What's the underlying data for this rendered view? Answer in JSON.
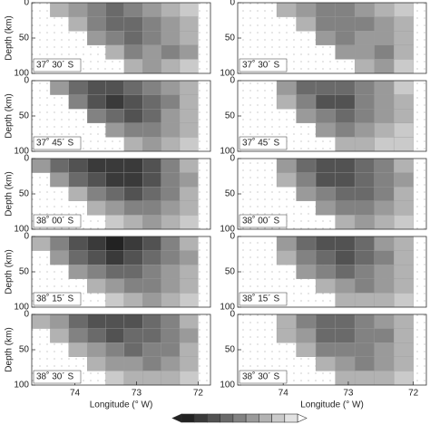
{
  "chart_data": [
    {
      "type": "heatmap",
      "label": "37˚ 30´ S",
      "ylabel": "Depth (km)",
      "xlim": [
        74.7,
        71.8
      ],
      "ylim": [
        100,
        0
      ],
      "yticks": [
        0,
        50,
        100
      ],
      "xbins": [
        74.7,
        74.4,
        74.1,
        73.8,
        73.5,
        73.2,
        72.9,
        72.6,
        72.3,
        72.0
      ],
      "ybins": [
        0,
        20,
        40,
        60,
        80,
        100
      ],
      "values": [
        [
          null,
          3,
          4,
          5,
          6,
          5,
          4,
          3,
          2
        ],
        [
          null,
          null,
          3,
          5,
          6,
          6,
          5,
          4,
          3
        ],
        [
          null,
          null,
          null,
          4,
          5,
          6,
          5,
          4,
          3
        ],
        [
          null,
          null,
          null,
          null,
          3,
          5,
          4,
          5,
          4
        ],
        [
          null,
          null,
          null,
          null,
          null,
          3,
          4,
          3,
          2
        ]
      ]
    },
    {
      "type": "heatmap",
      "label": "37˚ 30´ S",
      "xlim": [
        74.7,
        71.8
      ],
      "ylim": [
        100,
        0
      ],
      "yticks": [
        0,
        50,
        100
      ],
      "xbins": [
        74.7,
        74.4,
        74.1,
        73.8,
        73.5,
        73.2,
        72.9,
        72.6,
        72.3,
        72.0
      ],
      "ybins": [
        0,
        20,
        40,
        60,
        80,
        100
      ],
      "values": [
        [
          null,
          null,
          3,
          4,
          5,
          5,
          4,
          3,
          2
        ],
        [
          null,
          null,
          null,
          3,
          5,
          5,
          5,
          4,
          3
        ],
        [
          null,
          null,
          null,
          null,
          4,
          5,
          4,
          4,
          3
        ],
        [
          null,
          null,
          null,
          null,
          null,
          4,
          4,
          5,
          3
        ],
        [
          null,
          null,
          null,
          null,
          null,
          null,
          3,
          4,
          2
        ]
      ]
    },
    {
      "type": "heatmap",
      "label": "37˚ 45´ S",
      "ylabel": "Depth (km)",
      "xlim": [
        74.7,
        71.8
      ],
      "ylim": [
        100,
        0
      ],
      "yticks": [
        0,
        50,
        100
      ],
      "xbins": [
        74.7,
        74.4,
        74.1,
        73.8,
        73.5,
        73.2,
        72.9,
        72.6,
        72.3,
        72.0
      ],
      "ybins": [
        0,
        20,
        40,
        60,
        80,
        100
      ],
      "values": [
        [
          null,
          4,
          6,
          7,
          7,
          6,
          5,
          4,
          3
        ],
        [
          null,
          null,
          5,
          7,
          8,
          7,
          6,
          5,
          3
        ],
        [
          null,
          null,
          null,
          5,
          6,
          7,
          6,
          4,
          3
        ],
        [
          null,
          null,
          null,
          null,
          4,
          5,
          5,
          4,
          3
        ],
        [
          null,
          null,
          null,
          null,
          null,
          3,
          4,
          3,
          2
        ]
      ]
    },
    {
      "type": "heatmap",
      "label": "37˚ 45´ S",
      "xlim": [
        74.7,
        71.8
      ],
      "ylim": [
        100,
        0
      ],
      "yticks": [
        0,
        50,
        100
      ],
      "xbins": [
        74.7,
        74.4,
        74.1,
        73.8,
        73.5,
        73.2,
        72.9,
        72.6,
        72.3,
        72.0
      ],
      "ybins": [
        0,
        20,
        40,
        60,
        80,
        100
      ],
      "values": [
        [
          null,
          null,
          4,
          6,
          6,
          6,
          5,
          4,
          2
        ],
        [
          null,
          null,
          3,
          5,
          7,
          7,
          5,
          4,
          3
        ],
        [
          null,
          null,
          null,
          4,
          5,
          6,
          5,
          4,
          3
        ],
        [
          null,
          null,
          null,
          null,
          4,
          5,
          4,
          3,
          2
        ],
        [
          null,
          null,
          null,
          null,
          null,
          3,
          3,
          2,
          2
        ]
      ]
    },
    {
      "type": "heatmap",
      "label": "38˚ 00´ S",
      "ylabel": "Depth (km)",
      "xlim": [
        74.7,
        71.8
      ],
      "ylim": [
        100,
        0
      ],
      "yticks": [
        0,
        50,
        100
      ],
      "xbins": [
        74.7,
        74.4,
        74.1,
        73.8,
        73.5,
        73.2,
        72.9,
        72.6,
        72.3,
        72.0
      ],
      "ybins": [
        0,
        20,
        40,
        60,
        80,
        100
      ],
      "values": [
        [
          4,
          6,
          7,
          8,
          8,
          8,
          7,
          5,
          3
        ],
        [
          null,
          4,
          6,
          7,
          8,
          8,
          7,
          5,
          4
        ],
        [
          null,
          null,
          3,
          5,
          6,
          7,
          6,
          5,
          3
        ],
        [
          null,
          null,
          null,
          3,
          4,
          5,
          5,
          4,
          3
        ],
        [
          null,
          null,
          null,
          null,
          2,
          3,
          4,
          3,
          2
        ]
      ]
    },
    {
      "type": "heatmap",
      "label": "38˚ 00´ S",
      "xlim": [
        74.7,
        71.8
      ],
      "ylim": [
        100,
        0
      ],
      "yticks": [
        0,
        50,
        100
      ],
      "xbins": [
        74.7,
        74.4,
        74.1,
        73.8,
        73.5,
        73.2,
        72.9,
        72.6,
        72.3,
        72.0
      ],
      "ybins": [
        0,
        20,
        40,
        60,
        80,
        100
      ],
      "values": [
        [
          null,
          null,
          4,
          6,
          7,
          7,
          6,
          5,
          3
        ],
        [
          null,
          null,
          3,
          5,
          7,
          7,
          6,
          5,
          4
        ],
        [
          null,
          null,
          null,
          4,
          5,
          6,
          6,
          5,
          3
        ],
        [
          null,
          null,
          null,
          null,
          4,
          5,
          5,
          4,
          3
        ],
        [
          null,
          null,
          null,
          null,
          null,
          3,
          4,
          3,
          2
        ]
      ]
    },
    {
      "type": "heatmap",
      "label": "38˚ 15´ S",
      "ylabel": "Depth (km)",
      "xlim": [
        74.7,
        71.8
      ],
      "ylim": [
        100,
        0
      ],
      "yticks": [
        0,
        50,
        100
      ],
      "xbins": [
        74.7,
        74.4,
        74.1,
        73.8,
        73.5,
        73.2,
        72.9,
        72.6,
        72.3,
        72.0
      ],
      "ybins": [
        0,
        20,
        40,
        60,
        80,
        100
      ],
      "values": [
        [
          3,
          5,
          7,
          8,
          9,
          8,
          7,
          5,
          3
        ],
        [
          null,
          4,
          6,
          7,
          8,
          7,
          6,
          5,
          4
        ],
        [
          null,
          null,
          4,
          5,
          6,
          6,
          5,
          4,
          3
        ],
        [
          null,
          null,
          null,
          3,
          4,
          5,
          5,
          4,
          3
        ],
        [
          null,
          null,
          null,
          null,
          2,
          3,
          4,
          3,
          2
        ]
      ]
    },
    {
      "type": "heatmap",
      "label": "38˚ 15´ S",
      "xlim": [
        74.7,
        71.8
      ],
      "ylim": [
        100,
        0
      ],
      "yticks": [
        0,
        50,
        100
      ],
      "xbins": [
        74.7,
        74.4,
        74.1,
        73.8,
        73.5,
        73.2,
        72.9,
        72.6,
        72.3,
        72.0
      ],
      "ybins": [
        0,
        20,
        40,
        60,
        80,
        100
      ],
      "values": [
        [
          null,
          null,
          4,
          6,
          7,
          7,
          6,
          4,
          3
        ],
        [
          null,
          null,
          3,
          5,
          6,
          7,
          6,
          5,
          3
        ],
        [
          null,
          null,
          null,
          4,
          5,
          6,
          5,
          4,
          3
        ],
        [
          null,
          null,
          null,
          null,
          3,
          4,
          5,
          4,
          3
        ],
        [
          null,
          null,
          null,
          null,
          null,
          3,
          3,
          3,
          2
        ]
      ]
    },
    {
      "type": "heatmap",
      "label": "38˚ 30´ S",
      "ylabel": "Depth (km)",
      "xlabel": "Longitude (° W)",
      "xlim": [
        74.7,
        71.8
      ],
      "ylim": [
        100,
        0
      ],
      "xticks": [
        74,
        73,
        72
      ],
      "yticks": [
        0,
        50,
        100
      ],
      "xbins": [
        74.7,
        74.4,
        74.1,
        73.8,
        73.5,
        73.2,
        72.9,
        72.6,
        72.3,
        72.0
      ],
      "ybins": [
        0,
        20,
        40,
        60,
        80,
        100
      ],
      "values": [
        [
          3,
          4,
          6,
          7,
          7,
          7,
          6,
          5,
          3
        ],
        [
          null,
          3,
          5,
          6,
          7,
          6,
          6,
          5,
          4
        ],
        [
          null,
          null,
          3,
          4,
          5,
          6,
          5,
          5,
          3
        ],
        [
          null,
          null,
          null,
          3,
          4,
          4,
          5,
          4,
          3
        ],
        [
          null,
          null,
          null,
          null,
          2,
          3,
          3,
          3,
          2
        ]
      ]
    },
    {
      "type": "heatmap",
      "label": "38˚ 30´ S",
      "xlabel": "Longitude (° W)",
      "xlim": [
        74.7,
        71.8
      ],
      "ylim": [
        100,
        0
      ],
      "xticks": [
        74,
        73,
        72
      ],
      "yticks": [
        0,
        50,
        100
      ],
      "xbins": [
        74.7,
        74.4,
        74.1,
        73.8,
        73.5,
        73.2,
        72.9,
        72.6,
        72.3,
        72.0
      ],
      "ybins": [
        0,
        20,
        40,
        60,
        80,
        100
      ],
      "values": [
        [
          null,
          null,
          3,
          5,
          6,
          6,
          5,
          4,
          3
        ],
        [
          null,
          null,
          3,
          4,
          6,
          6,
          5,
          5,
          3
        ],
        [
          null,
          null,
          null,
          3,
          5,
          5,
          5,
          4,
          3
        ],
        [
          null,
          null,
          null,
          null,
          3,
          4,
          5,
          4,
          3
        ],
        [
          null,
          null,
          null,
          null,
          null,
          3,
          3,
          3,
          2
        ]
      ]
    },
    {
      "type": "colorbar",
      "levels": [
        9,
        8,
        7,
        6,
        5,
        4,
        3,
        2,
        1
      ]
    }
  ]
}
